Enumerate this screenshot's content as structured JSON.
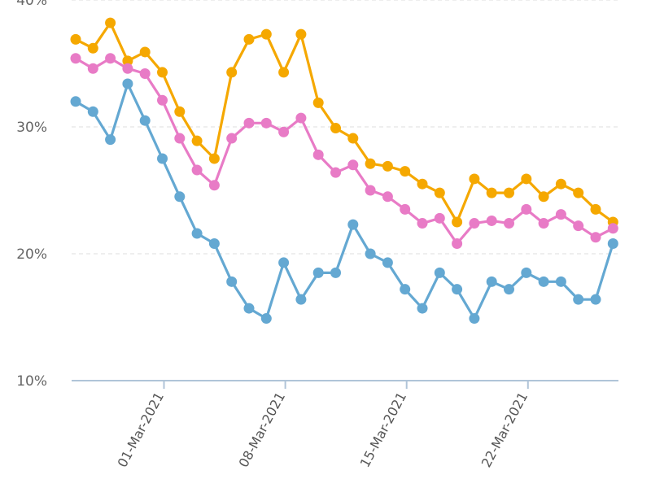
{
  "chart_data": {
    "type": "line",
    "title": "",
    "xlabel": "",
    "ylabel": "",
    "ylim": [
      10,
      40
    ],
    "y_ticks": [
      "10%",
      "20%",
      "30%",
      "40%"
    ],
    "y_tick_values": [
      10,
      20,
      30,
      40
    ],
    "x_ticks": [
      "01-Mar-2021",
      "08-Mar-2021",
      "15-Mar-2021",
      "22-Mar-2021"
    ],
    "x_tick_dates": [
      "2021-03-01",
      "2021-03-08",
      "2021-03-15",
      "2021-03-22"
    ],
    "grid": true,
    "x": [
      "2021-02-24",
      "2021-02-25",
      "2021-02-26",
      "2021-02-27",
      "2021-02-28",
      "2021-03-01",
      "2021-03-02",
      "2021-03-03",
      "2021-03-04",
      "2021-03-05",
      "2021-03-06",
      "2021-03-07",
      "2021-03-08",
      "2021-03-09",
      "2021-03-10",
      "2021-03-11",
      "2021-03-12",
      "2021-03-13",
      "2021-03-14",
      "2021-03-15",
      "2021-03-16",
      "2021-03-17",
      "2021-03-18",
      "2021-03-19",
      "2021-03-20",
      "2021-03-21",
      "2021-03-22",
      "2021-03-23",
      "2021-03-24",
      "2021-03-25",
      "2021-03-26",
      "2021-03-27",
      "2021-03-28"
    ],
    "series": [
      {
        "color": "#f5a800",
        "values": [
          36.9,
          36.2,
          38.2,
          35.2,
          35.9,
          34.3,
          31.2,
          28.9,
          27.5,
          34.3,
          36.9,
          37.3,
          34.3,
          37.3,
          31.9,
          29.9,
          29.1,
          27.1,
          26.9,
          26.5,
          25.5,
          24.8,
          22.5,
          25.9,
          24.8,
          24.8,
          25.9,
          24.5,
          25.5,
          24.8,
          23.5,
          22.5,
          null
        ]
      },
      {
        "color": "#e87bc6",
        "values": [
          35.4,
          34.6,
          35.4,
          34.6,
          34.2,
          32.1,
          29.1,
          26.6,
          25.4,
          29.1,
          30.3,
          30.3,
          29.6,
          30.7,
          27.8,
          26.4,
          27.0,
          25.0,
          24.5,
          23.5,
          22.4,
          22.8,
          20.8,
          22.4,
          22.6,
          22.4,
          23.5,
          22.4,
          23.1,
          22.2,
          21.3,
          22.0,
          null
        ]
      },
      {
        "color": "#64a8d2",
        "values": [
          32.0,
          31.2,
          29.0,
          33.4,
          30.5,
          27.5,
          24.5,
          21.6,
          20.8,
          17.8,
          15.7,
          14.9,
          19.3,
          16.4,
          18.5,
          18.5,
          22.3,
          20.0,
          19.3,
          17.2,
          15.7,
          18.5,
          17.2,
          14.9,
          17.8,
          17.2,
          18.5,
          17.8,
          17.8,
          16.4,
          16.4,
          20.8,
          null
        ]
      }
    ]
  }
}
